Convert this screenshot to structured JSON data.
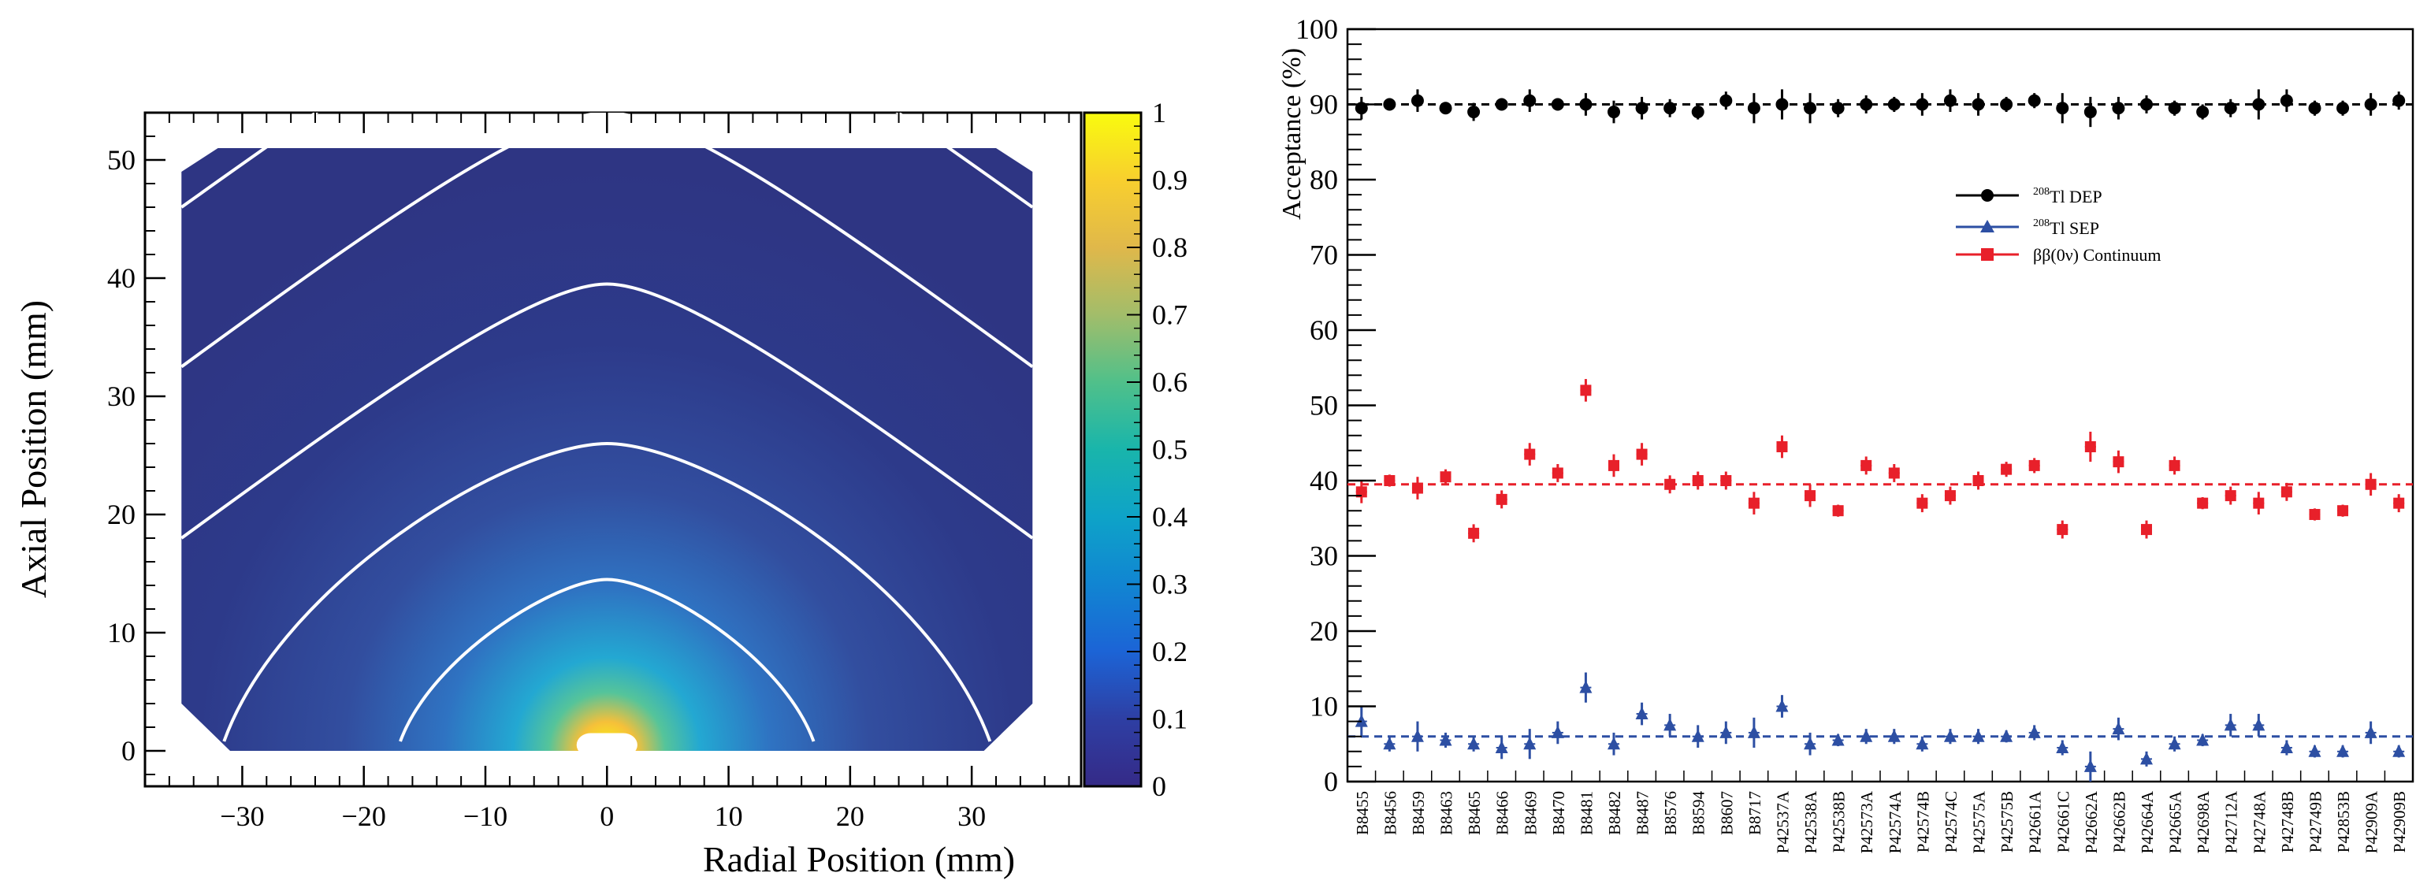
{
  "chart_data": [
    {
      "type": "heatmap",
      "xlabel": "Radial Position (mm)",
      "ylabel": "Axial Position (mm)",
      "xlim": [
        -38,
        39
      ],
      "ylim": [
        -3,
        54
      ],
      "x_ticks": [
        -30,
        -20,
        -10,
        0,
        10,
        20,
        30
      ],
      "y_ticks": [
        0,
        10,
        20,
        30,
        40,
        50
      ],
      "x_tick_labels": [
        "−30",
        "−20",
        "−10",
        "0",
        "10",
        "20",
        "30"
      ],
      "y_tick_labels": [
        "0",
        "10",
        "20",
        "30",
        "40",
        "50"
      ],
      "colorbar": {
        "range": [
          0,
          1
        ],
        "ticks": [
          0,
          0.1,
          0.2,
          0.3,
          0.4,
          0.5,
          0.6,
          0.7,
          0.8,
          0.9,
          1
        ],
        "tick_labels": [
          "0",
          "0.1",
          "0.2",
          "0.3",
          "0.4",
          "0.5",
          "0.6",
          "0.7",
          "0.8",
          "0.9",
          "1"
        ]
      },
      "detector": {
        "radius_mm": 35,
        "height_mm": 51,
        "bottom_chamfer_mm": 4,
        "top_chamfer_mm": 3
      },
      "contours": [
        {
          "apex_axial_mm": 14.5,
          "bottom_radial_mm": 17
        },
        {
          "apex_axial_mm": 26,
          "bottom_radial_mm": 31.5
        },
        {
          "apex_axial_mm": 39.5,
          "top_left_radial_mm": -35,
          "top_left_axial_mm": 18
        },
        {
          "apex_axial_mm": 54,
          "top_left_radial_mm": -35,
          "top_left_axial_mm": 32.5
        },
        {
          "apex_axial_mm": 67,
          "top_left_radial_mm": -35,
          "top_left_axial_mm": 46
        }
      ]
    },
    {
      "type": "scatter",
      "ylabel": "Acceptance (%)",
      "ylim": [
        0,
        100
      ],
      "y_ticks": [
        0,
        10,
        20,
        30,
        40,
        50,
        60,
        70,
        80,
        90,
        100
      ],
      "y_tick_labels": [
        "0",
        "10",
        "20",
        "30",
        "40",
        "50",
        "60",
        "70",
        "80",
        "90",
        "100"
      ],
      "categories": [
        "B8455",
        "B8456",
        "B8459",
        "B8463",
        "B8465",
        "B8466",
        "B8469",
        "B8470",
        "B8481",
        "B8482",
        "B8487",
        "B8576",
        "B8594",
        "B8607",
        "B8717",
        "P42537A",
        "P42538A",
        "P42538B",
        "P42573A",
        "P42574A",
        "P42574B",
        "P42574C",
        "P42575A",
        "P42575B",
        "P42661A",
        "P42661C",
        "P42662A",
        "P42662B",
        "P42664A",
        "P42665A",
        "P42698A",
        "P42712A",
        "P42748A",
        "P42748B",
        "P42749B",
        "P42853B",
        "P42909A",
        "P42909B"
      ],
      "legend": {
        "placement": "top-right",
        "entries": [
          {
            "superscript": "208",
            "text": "Tl DEP"
          },
          {
            "superscript": "208",
            "text": "Tl SEP"
          },
          {
            "text": "ββ(0ν) Continuum"
          }
        ]
      },
      "series": [
        {
          "name": "208Tl DEP",
          "color": "#000000",
          "marker": "circle",
          "mean": 90,
          "values": [
            89.5,
            90,
            90.5,
            89.5,
            89,
            90,
            90.5,
            90,
            90,
            89,
            89.5,
            89.5,
            89,
            90.5,
            89.5,
            90,
            89.5,
            89.5,
            90,
            90,
            90,
            90.5,
            90,
            90,
            90.5,
            89.5,
            89,
            89.5,
            90,
            89.5,
            89,
            89.5,
            90,
            90.5,
            89.5,
            89.5,
            90,
            90.5
          ],
          "errors": [
            1.5,
            0.8,
            1.5,
            0.8,
            1.2,
            0.8,
            1.5,
            0.8,
            1.5,
            1.5,
            1.5,
            1.2,
            1,
            1.2,
            2,
            2,
            2,
            1.2,
            1.2,
            1,
            1.5,
            1.5,
            1.5,
            1,
            1,
            2,
            2,
            1.5,
            1.2,
            1,
            1,
            1.2,
            2,
            1.5,
            1,
            1,
            1.5,
            1.2
          ]
        },
        {
          "name": "208Tl SEP",
          "color": "#2d4fa3",
          "marker": "triangle",
          "mean": 6,
          "values": [
            8,
            5,
            6,
            5.5,
            5,
            4.5,
            5,
            6.5,
            12.5,
            5,
            9,
            7.5,
            6,
            6.5,
            6.5,
            10,
            5,
            5.5,
            6,
            6,
            5,
            6,
            6,
            6,
            6.5,
            4.5,
            2,
            7,
            3,
            5,
            5.5,
            7.5,
            7.5,
            4.5,
            4,
            4,
            6.5,
            4
          ],
          "errors": [
            2,
            1,
            2,
            1,
            1,
            1.5,
            2,
            1.5,
            2,
            1.5,
            1.5,
            1.5,
            1.5,
            1.5,
            2,
            1.5,
            1.5,
            0.8,
            1,
            1,
            1,
            1,
            1,
            0.8,
            1,
            1,
            2,
            1.5,
            1,
            1,
            0.8,
            1.5,
            1.5,
            1,
            0.8,
            0.8,
            1.5,
            0.8
          ]
        },
        {
          "name": "ββ(0ν) Continuum",
          "color": "#e8202a",
          "marker": "square",
          "mean": 39.5,
          "values": [
            38.5,
            40,
            39,
            40.5,
            33,
            37.5,
            43.5,
            41,
            52,
            42,
            43.5,
            39.5,
            40,
            40,
            37,
            44.5,
            38,
            36,
            42,
            41,
            37,
            38,
            40,
            41.5,
            42,
            33.5,
            44.5,
            42.5,
            33.5,
            42,
            37,
            38,
            37,
            38.5,
            35.5,
            36,
            39.5,
            37
          ],
          "errors": [
            1.5,
            0.8,
            1.5,
            1,
            1.2,
            1.2,
            1.5,
            1.2,
            1.5,
            1.5,
            1.5,
            1.2,
            1.2,
            1.2,
            1.5,
            1.5,
            1.5,
            0.8,
            1.2,
            1.2,
            1.2,
            1.2,
            1.2,
            1,
            1,
            1.2,
            2,
            1.5,
            1.2,
            1.2,
            0.8,
            1.2,
            1.5,
            1.2,
            0.8,
            0.8,
            1.5,
            1.2
          ]
        }
      ]
    }
  ]
}
